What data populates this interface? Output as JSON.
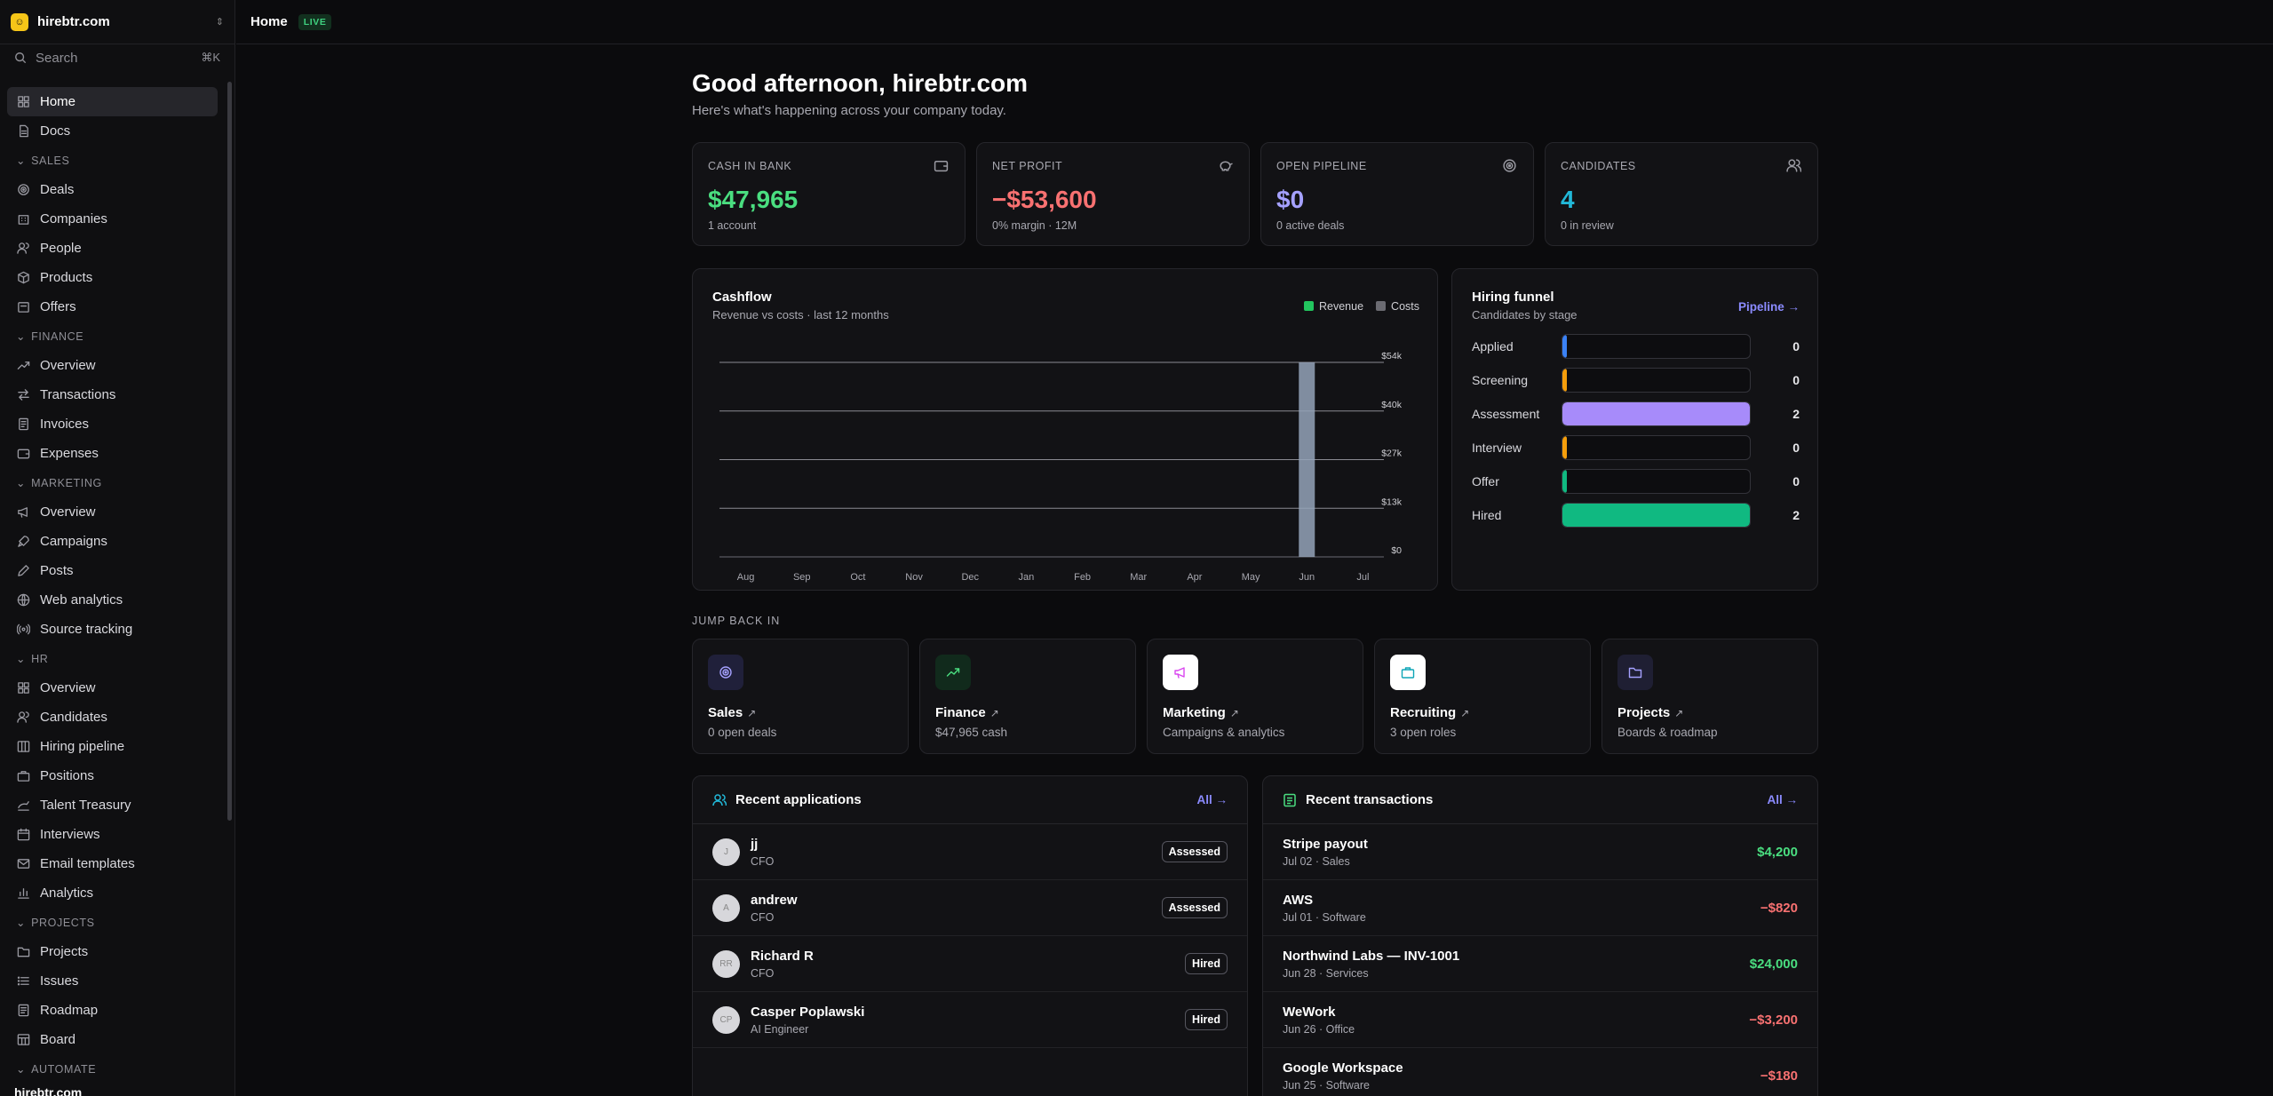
{
  "workspace": {
    "name": "hirebtr.com"
  },
  "search": {
    "label": "Search",
    "shortcut": "⌘K"
  },
  "sidebar": {
    "top": [
      {
        "label": "Home"
      },
      {
        "label": "Docs"
      }
    ],
    "sections": [
      {
        "title": "SALES",
        "items": [
          "Deals",
          "Companies",
          "People",
          "Products",
          "Offers"
        ]
      },
      {
        "title": "FINANCE",
        "items": [
          "Overview",
          "Transactions",
          "Invoices",
          "Expenses"
        ]
      },
      {
        "title": "MARKETING",
        "items": [
          "Overview",
          "Campaigns",
          "Posts",
          "Web analytics",
          "Source tracking"
        ]
      },
      {
        "title": "HR",
        "items": [
          "Overview",
          "Candidates",
          "Hiring pipeline",
          "Positions",
          "Talent Treasury",
          "Interviews",
          "Email templates",
          "Analytics"
        ]
      },
      {
        "title": "PROJECTS",
        "items": [
          "Projects",
          "Issues",
          "Roadmap",
          "Board"
        ]
      },
      {
        "title": "AUTOMATE",
        "items": []
      }
    ],
    "bottom_user": "hirebtr.com"
  },
  "topbar": {
    "title": "Home",
    "badge": "LIVE"
  },
  "greeting": {
    "title": "Good afternoon, hirebtr.com",
    "subtitle": "Here's what's happening across your company today."
  },
  "kpis": [
    {
      "label": "CASH IN BANK",
      "value": "$47,965",
      "note": "1 account",
      "color": "#4ade80",
      "icon": "wallet-icon"
    },
    {
      "label": "NET PROFIT",
      "value": "−$53,600",
      "note": "0% margin · 12M",
      "color": "#f87171",
      "icon": "piggy-bank-icon"
    },
    {
      "label": "OPEN PIPELINE",
      "value": "$0",
      "note": "0 active deals",
      "color": "#a5a1ff",
      "icon": "target-icon"
    },
    {
      "label": "CANDIDATES",
      "value": "4",
      "note": "0 in review",
      "color": "#22b8d8",
      "icon": "users-icon"
    }
  ],
  "cashflow": {
    "title": "Cashflow",
    "subtitle": "Revenue vs costs · last 12 months",
    "legend": [
      "Revenue",
      "Costs"
    ]
  },
  "chart_data": {
    "type": "bar",
    "title": "Cashflow",
    "subtitle": "Revenue vs costs · last 12 months",
    "categories": [
      "Aug",
      "Sep",
      "Oct",
      "Nov",
      "Dec",
      "Jan",
      "Feb",
      "Mar",
      "Apr",
      "May",
      "Jun",
      "Jul"
    ],
    "series": [
      {
        "name": "Revenue",
        "color": "#22c55e",
        "values": [
          0,
          0,
          0,
          0,
          0,
          0,
          0,
          0,
          0,
          0,
          0,
          0
        ]
      },
      {
        "name": "Costs",
        "color": "#94a3b8",
        "values": [
          0,
          0,
          0,
          0,
          0,
          0,
          0,
          0,
          0,
          0,
          54000,
          0
        ]
      }
    ],
    "yticks": [
      "$0",
      "$13k",
      "$27k",
      "$40k",
      "$54k"
    ],
    "ylim": [
      0,
      54000
    ],
    "grid": true,
    "legend_position": "top-right"
  },
  "funnel": {
    "title": "Hiring funnel",
    "subtitle": "Candidates by stage",
    "link": "Pipeline →",
    "stages": [
      {
        "name": "Applied",
        "count": "0",
        "color": "#3b82f6",
        "fraction": 0
      },
      {
        "name": "Screening",
        "count": "0",
        "color": "#f59e0b",
        "fraction": 0
      },
      {
        "name": "Assessment",
        "count": "2",
        "color": "#a78bfa",
        "fraction": 1
      },
      {
        "name": "Interview",
        "count": "0",
        "color": "#f59e0b",
        "fraction": 0
      },
      {
        "name": "Offer",
        "count": "0",
        "color": "#10b981",
        "fraction": 0
      },
      {
        "name": "Hired",
        "count": "2",
        "color": "#10b981",
        "fraction": 1
      }
    ]
  },
  "jump": {
    "label": "JUMP BACK IN",
    "items": [
      {
        "title": "Sales",
        "sub": "0 open deals",
        "icon": "target-icon"
      },
      {
        "title": "Finance",
        "sub": "$47,965 cash",
        "icon": "trending-up-icon"
      },
      {
        "title": "Marketing",
        "sub": "Campaigns & analytics",
        "icon": "megaphone-icon"
      },
      {
        "title": "Recruiting",
        "sub": "3 open roles",
        "icon": "briefcase-icon"
      },
      {
        "title": "Projects",
        "sub": "Boards & roadmap",
        "icon": "folder-icon"
      }
    ]
  },
  "applications": {
    "title": "Recent applications",
    "all": "All →",
    "rows": [
      {
        "name": "jj",
        "role": "CFO",
        "status": "Assessed",
        "initials": "J"
      },
      {
        "name": "andrew",
        "role": "CFO",
        "status": "Assessed",
        "initials": "A"
      },
      {
        "name": "Richard R",
        "role": "CFO",
        "status": "Hired",
        "initials": "RR"
      },
      {
        "name": "Casper Poplawski",
        "role": "AI Engineer",
        "status": "Hired",
        "initials": "CP"
      }
    ]
  },
  "transactions": {
    "title": "Recent transactions",
    "all": "All →",
    "rows": [
      {
        "name": "Stripe payout",
        "meta": "Jul 02 · Sales",
        "amount": "$4,200",
        "positive": true
      },
      {
        "name": "AWS",
        "meta": "Jul 01 · Software",
        "amount": "−$820",
        "positive": false
      },
      {
        "name": "Northwind Labs — INV-1001",
        "meta": "Jun 28 · Services",
        "amount": "$24,000",
        "positive": true
      },
      {
        "name": "WeWork",
        "meta": "Jun 26 · Office",
        "amount": "−$3,200",
        "positive": false
      },
      {
        "name": "Google Workspace",
        "meta": "Jun 25 · Software",
        "amount": "−$180",
        "positive": false
      }
    ]
  }
}
